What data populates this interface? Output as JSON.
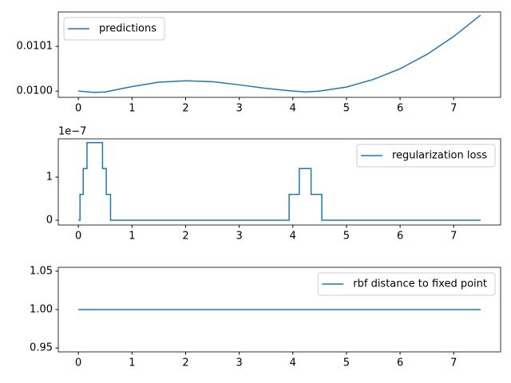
{
  "chart_data": [
    {
      "type": "line",
      "x": [
        0,
        0.3,
        0.5,
        1,
        1.5,
        2,
        2.5,
        3,
        3.5,
        4,
        4.25,
        4.5,
        5,
        5.5,
        6,
        6.5,
        7,
        7.5
      ],
      "series": [
        {
          "name": "predictions",
          "color": "#1f77b4",
          "values": [
            0.01,
            0.009997,
            0.009998,
            0.01001,
            0.01002,
            0.010023,
            0.010021,
            0.010014,
            0.010006,
            0.01,
            0.009998,
            0.01,
            0.010009,
            0.010026,
            0.01005,
            0.010082,
            0.010122,
            0.01017
          ]
        }
      ],
      "xlim": [
        -0.375,
        7.875
      ],
      "xticks": [
        0,
        1,
        2,
        3,
        4,
        5,
        6,
        7
      ],
      "ylim": [
        0.009986,
        0.010177
      ],
      "yticks": [
        {
          "value": 0.01,
          "label": "0.0100"
        },
        {
          "value": 0.0101,
          "label": "0.0101"
        }
      ],
      "legend": "upper left"
    },
    {
      "type": "line",
      "x": [
        0,
        0.03,
        0.03,
        0.09,
        0.09,
        0.16,
        0.16,
        0.45,
        0.45,
        0.52,
        0.52,
        0.6,
        0.6,
        3.93,
        3.93,
        4.12,
        4.12,
        4.34,
        4.34,
        4.54,
        4.54,
        7.5
      ],
      "series": [
        {
          "name": "regularization loss",
          "color": "#1f77b4",
          "values": [
            0,
            0,
            0.6,
            0.6,
            1.2,
            1.2,
            1.8,
            1.8,
            1.2,
            1.2,
            0.6,
            0.6,
            0,
            0,
            0.6,
            0.6,
            1.2,
            1.2,
            0.6,
            0.6,
            0,
            0
          ]
        }
      ],
      "xlim": [
        -0.375,
        7.875
      ],
      "xticks": [
        0,
        1,
        2,
        3,
        4,
        5,
        6,
        7
      ],
      "ylim": [
        -0.111,
        1.889
      ],
      "yticks": [
        0,
        1
      ],
      "offset_label": "1e−7",
      "legend": "upper right"
    },
    {
      "type": "line",
      "x": [
        0,
        7.5
      ],
      "series": [
        {
          "name": "rbf distance to fixed point",
          "color": "#1f77b4",
          "values": [
            1,
            1
          ]
        }
      ],
      "xlim": [
        -0.375,
        7.875
      ],
      "xticks": [
        0,
        1,
        2,
        3,
        4,
        5,
        6,
        7
      ],
      "ylim": [
        0.945,
        1.055
      ],
      "yticks": [
        0.95,
        {
          "value": 1,
          "label": "1.00"
        },
        1.05
      ],
      "legend": "upper right"
    }
  ]
}
